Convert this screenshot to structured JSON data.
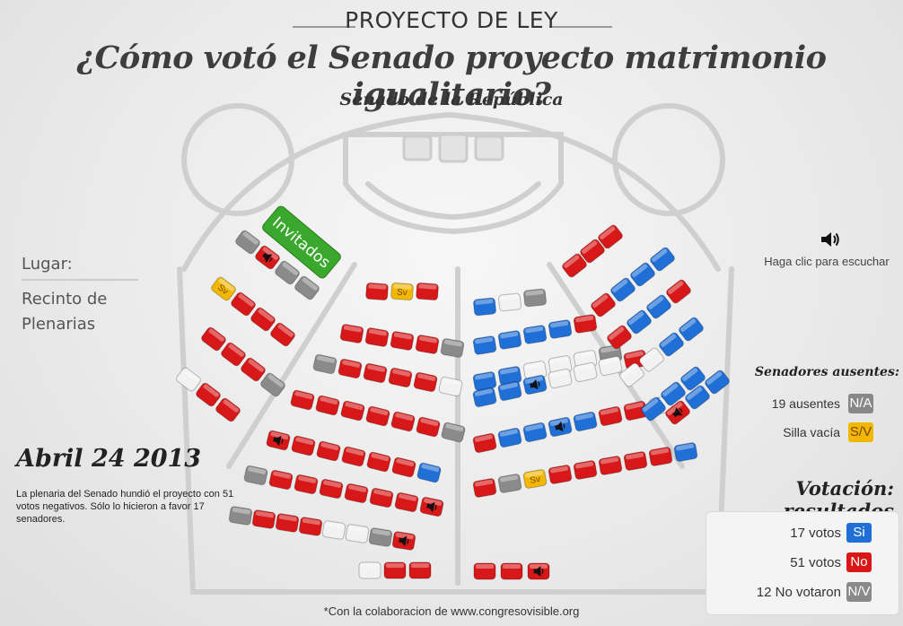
{
  "header": {
    "kicker": "PROYECTO DE LEY",
    "title": "¿Cómo votó el Senado proyecto matrimonio igualitario?",
    "subtitle": "Senado de la República"
  },
  "place": {
    "label": "Lugar:",
    "value": "Recinto de Plenarias"
  },
  "date": "Abril 24 2013",
  "description": "La plenaria del Senado hundió el proyecto con 51 votos negativos. Sólo lo hicieron a favor 17 senadores.",
  "listen": {
    "label": "Haga clic para escuchar",
    "icon": "speaker-icon"
  },
  "invited": {
    "label": "Invitados",
    "color": "#3aa82c"
  },
  "absent": {
    "title": "Senadores ausentes:",
    "items": [
      {
        "text": "19 ausentes",
        "badge": "N/A",
        "color": "#888888"
      },
      {
        "text": "Silla vacía",
        "badge": "S/V",
        "color": "#f2b705"
      }
    ]
  },
  "results": {
    "title": "Votación: resultados",
    "items": [
      {
        "text": "17 votos",
        "badge": "Si",
        "color": "#1f6fd6"
      },
      {
        "text": "51 votos",
        "badge": "No",
        "color": "#d81818"
      },
      {
        "text": "12 No votaron",
        "badge": "N/V",
        "color": "#8a8a8a"
      }
    ]
  },
  "seat_label_sv": "Sv",
  "colors": {
    "si": "#1f6fd6",
    "no": "#d81818",
    "gray": "#8a8a8a",
    "white": "#f2f2f2",
    "sv": "#f2b705"
  },
  "credit": "*Con la colaboracion de www.congresovisible.org"
}
